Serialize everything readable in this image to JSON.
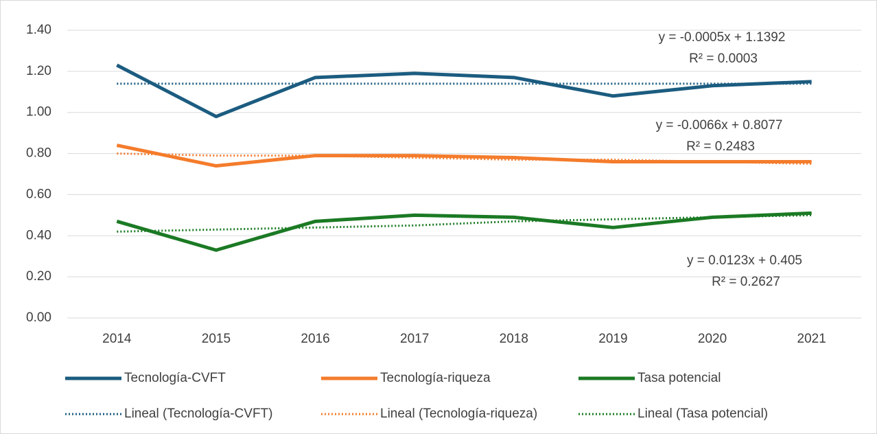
{
  "chart_data": {
    "type": "line",
    "categories": [
      "2014",
      "2015",
      "2016",
      "2017",
      "2018",
      "2019",
      "2020",
      "2021"
    ],
    "series": [
      {
        "name": "Tecnología-CVFT",
        "color": "#1c5c80",
        "style": "solid",
        "values": [
          1.23,
          0.98,
          1.17,
          1.19,
          1.17,
          1.08,
          1.13,
          1.15
        ]
      },
      {
        "name": "Tecnología-riqueza",
        "color": "#f47c2c",
        "style": "solid",
        "values": [
          0.84,
          0.74,
          0.79,
          0.79,
          0.78,
          0.76,
          0.76,
          0.76
        ]
      },
      {
        "name": "Tasa potencial",
        "color": "#1b7a24",
        "style": "solid",
        "values": [
          0.47,
          0.33,
          0.47,
          0.5,
          0.49,
          0.44,
          0.49,
          0.51
        ]
      },
      {
        "name": "Lineal (Tecnología-CVFT)",
        "color": "#1c5c80",
        "style": "dotted",
        "values": [
          1.14,
          1.14,
          1.14,
          1.14,
          1.14,
          1.14,
          1.14,
          1.14
        ]
      },
      {
        "name": "Lineal (Tecnología-riqueza)",
        "color": "#f47c2c",
        "style": "dotted",
        "values": [
          0.8,
          0.79,
          0.79,
          0.78,
          0.77,
          0.77,
          0.76,
          0.75
        ]
      },
      {
        "name": "Lineal (Tasa potencial)",
        "color": "#1b7a24",
        "style": "dotted",
        "values": [
          0.42,
          0.43,
          0.44,
          0.45,
          0.47,
          0.48,
          0.49,
          0.5
        ]
      }
    ],
    "annotations": [
      [
        "y = -0.0005x + 1.1392",
        "R² = 0.0003"
      ],
      [
        "y = -0.0066x + 0.8077",
        "R² = 0.2483"
      ],
      [
        "y = 0.0123x + 0.405",
        "R² = 0.2627"
      ]
    ],
    "ylim": [
      0,
      1.4
    ],
    "yticks": [
      {
        "value": 0,
        "label": "0.00"
      },
      {
        "value": 0.2,
        "label": "0.20"
      },
      {
        "value": 0.4,
        "label": "0.40"
      },
      {
        "value": 0.6,
        "label": "0.60"
      },
      {
        "value": 0.8,
        "label": "0.80"
      },
      {
        "value": 1.0,
        "label": "1.00"
      },
      {
        "value": 1.2,
        "label": "1.20"
      },
      {
        "value": 1.4,
        "label": "1.40"
      }
    ],
    "grid": true,
    "legend": "bottom"
  }
}
